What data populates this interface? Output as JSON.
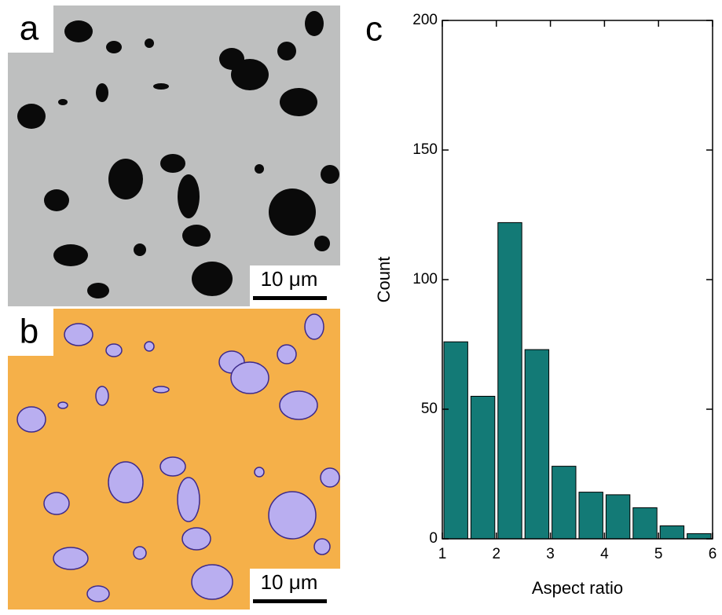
{
  "panel_labels": [
    "a",
    "b"
  ],
  "scale_bars": [
    "10 μm",
    "10 μm"
  ],
  "chart_data": {
    "type": "histogram",
    "panel_label": "c",
    "x_label": "Aspect ratio",
    "y_label": "Count",
    "bins": [
      1,
      1.5,
      2,
      2.5,
      3,
      3.5,
      4,
      4.5,
      5,
      5.5,
      6
    ],
    "values": [
      76,
      55,
      122,
      73,
      28,
      18,
      17,
      12,
      5,
      2
    ],
    "color": "#137a76",
    "xlim": [
      1,
      6
    ],
    "xticks": [
      1,
      2,
      3,
      4,
      5,
      6
    ],
    "ylim": [
      0,
      200
    ],
    "yticks": [
      0,
      50,
      100,
      150,
      200
    ]
  }
}
